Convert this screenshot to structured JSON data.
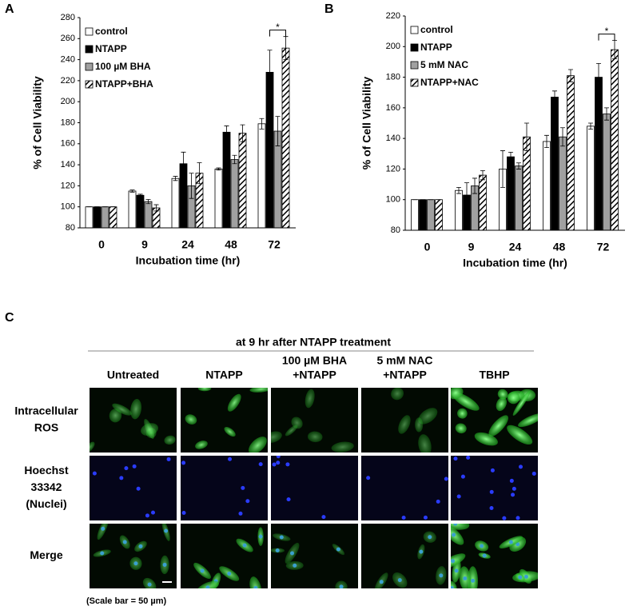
{
  "chart_data": [
    {
      "type": "bar",
      "panel": "A",
      "ylabel": "% of Cell Viability",
      "xlabel": "Incubation time (hr)",
      "categories": [
        "0",
        "9",
        "24",
        "48",
        "72"
      ],
      "ylim": [
        80,
        280
      ],
      "yticks": [
        80,
        100,
        120,
        140,
        160,
        180,
        200,
        220,
        240,
        260,
        280
      ],
      "legend": "upper left",
      "significance": "*",
      "series": [
        {
          "name": "control",
          "color": "#ffffff",
          "values": [
            100,
            115,
            127,
            136,
            179
          ],
          "errors": [
            0,
            1,
            2,
            1,
            5
          ]
        },
        {
          "name": "NTAPP",
          "color": "#000000",
          "values": [
            100,
            111,
            141,
            171,
            228
          ],
          "errors": [
            0,
            1,
            11,
            6,
            21
          ]
        },
        {
          "name": "100 µM BHA",
          "color": "#a0a0a0",
          "values": [
            100,
            105,
            120,
            145,
            172
          ],
          "errors": [
            0,
            2,
            12,
            4,
            14
          ]
        },
        {
          "name": "NTAPP+BHA",
          "color": "#000000",
          "hatch": true,
          "values": [
            100,
            99,
            132,
            170,
            251
          ],
          "errors": [
            0,
            3,
            10,
            8,
            11
          ]
        }
      ]
    },
    {
      "type": "bar",
      "panel": "B",
      "ylabel": "% of Cell Viability",
      "xlabel": "Incubation time (hr)",
      "categories": [
        "0",
        "9",
        "24",
        "48",
        "72"
      ],
      "ylim": [
        80,
        220
      ],
      "yticks": [
        80,
        100,
        120,
        140,
        160,
        180,
        200,
        220
      ],
      "legend": "upper left",
      "significance": "*",
      "series": [
        {
          "name": "control",
          "color": "#ffffff",
          "values": [
            100,
            106,
            120,
            138,
            148
          ],
          "errors": [
            0,
            2,
            12,
            4,
            2
          ]
        },
        {
          "name": "NTAPP",
          "color": "#000000",
          "values": [
            100,
            103,
            128,
            167,
            180
          ],
          "errors": [
            0,
            8,
            3,
            4,
            9
          ]
        },
        {
          "name": "5 mM NAC",
          "color": "#a0a0a0",
          "values": [
            100,
            109,
            122,
            141,
            156
          ],
          "errors": [
            0,
            5,
            2,
            6,
            4
          ]
        },
        {
          "name": "NTAPP+NAC",
          "color": "#000000",
          "hatch": true,
          "values": [
            100,
            116,
            141,
            181,
            198
          ],
          "errors": [
            0,
            3,
            9,
            4,
            6
          ]
        }
      ]
    }
  ],
  "panel_c": {
    "label": "C",
    "title": "at 9 hr after NTAPP treatment",
    "columns": [
      [
        "Untreated"
      ],
      [
        "NTAPP"
      ],
      [
        "100 µM BHA",
        "+NTAPP"
      ],
      [
        "5 mM NAC",
        "+NTAPP"
      ],
      [
        "TBHP"
      ]
    ],
    "rows": [
      [
        "Intracellular",
        "ROS"
      ],
      [
        "Hoechst",
        "33342",
        "(Nuclei)"
      ],
      [
        "Merge"
      ]
    ],
    "scale_note": "(Scale bar = 50 µm)"
  }
}
